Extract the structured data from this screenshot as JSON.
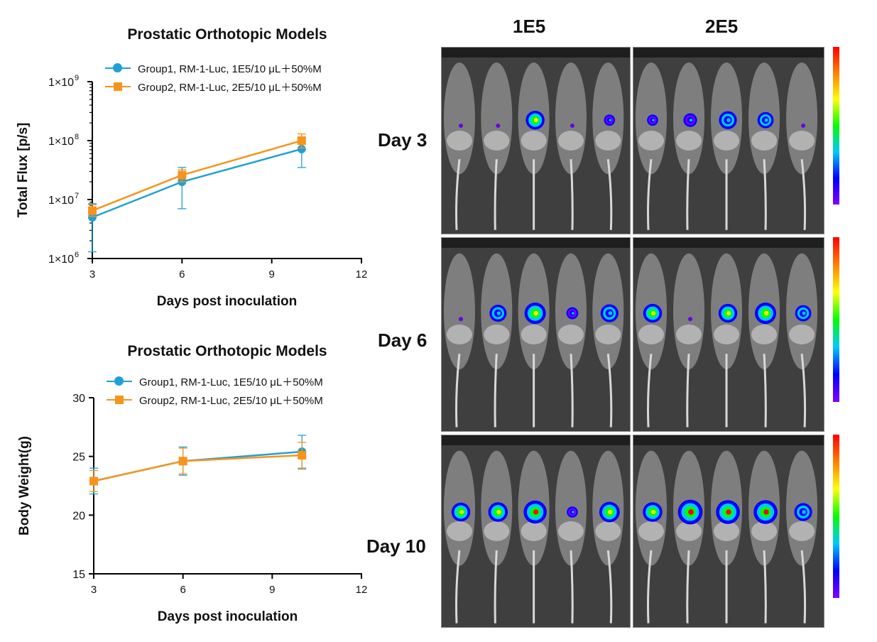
{
  "chart_data": [
    {
      "type": "line",
      "title": "Prostatic Orthotopic Models",
      "xlabel": "Days post inoculation",
      "ylabel": "Total Flux [p/s]",
      "yscale": "log",
      "xlim": [
        3,
        12
      ],
      "ylim": [
        1000000,
        1000000000
      ],
      "xticks": [
        "3",
        "6",
        "9",
        "12"
      ],
      "yticks": [
        {
          "base": "1×10",
          "exp": "6"
        },
        {
          "base": "1×10",
          "exp": "7"
        },
        {
          "base": "1×10",
          "exp": "8"
        },
        {
          "base": "1×10",
          "exp": "9"
        }
      ],
      "x": [
        3,
        6,
        10
      ],
      "series": [
        {
          "name": "Group1, RM-1-Luc, 1E5/10 μL＋50%M",
          "color": "#1fa0d8",
          "marker": "circle",
          "values": [
            5000000,
            20000000,
            72000000
          ],
          "err_low": [
            1300000,
            7000000,
            35000000
          ],
          "err_high": [
            8500000,
            35000000,
            110000000
          ]
        },
        {
          "name": "Group2, RM-1-Luc, 2E5/10 μL＋50%M",
          "color": "#f7941d",
          "marker": "square",
          "values": [
            6500000,
            26000000,
            100000000
          ],
          "err_low": [
            5200000,
            20000000,
            75000000
          ],
          "err_high": [
            8200000,
            32000000,
            130000000
          ]
        }
      ]
    },
    {
      "type": "line",
      "title": "Prostatic Orthotopic Models",
      "xlabel": "Days post inoculation",
      "ylabel": "Body Weight(g)",
      "yscale": "linear",
      "xlim": [
        3,
        12
      ],
      "ylim": [
        15,
        30
      ],
      "xticks": [
        "3",
        "6",
        "9",
        "12"
      ],
      "yticks": [
        "15",
        "20",
        "25",
        "30"
      ],
      "x": [
        3,
        6,
        10
      ],
      "series": [
        {
          "name": "Group1, RM-1-Luc, 1E5/10 μL＋50%M",
          "color": "#1fa0d8",
          "marker": "circle",
          "values": [
            22.9,
            24.6,
            25.4
          ],
          "err_low": [
            21.8,
            23.4,
            24.0
          ],
          "err_high": [
            24.0,
            25.8,
            26.8
          ]
        },
        {
          "name": "Group2, RM-1-Luc, 2E5/10 μL＋50%M",
          "color": "#f7941d",
          "marker": "square",
          "values": [
            22.9,
            24.6,
            25.1
          ],
          "err_low": [
            22.0,
            23.5,
            23.9
          ],
          "err_high": [
            23.8,
            25.7,
            26.2
          ]
        }
      ]
    }
  ],
  "imaging": {
    "columns": [
      "1E5",
      "2E5"
    ],
    "rows": [
      {
        "label": "Day 3",
        "spots": [
          [
            0,
            0.05
          ],
          [
            0,
            0.1
          ],
          [
            1,
            0.6
          ],
          [
            0,
            0.05
          ],
          [
            1,
            0.15
          ],
          [
            1,
            0.15
          ],
          [
            1,
            0.3
          ],
          [
            1,
            0.55
          ],
          [
            1,
            0.45
          ],
          [
            0,
            0.1
          ]
        ]
      },
      {
        "label": "Day 6",
        "spots": [
          [
            0,
            0.1
          ],
          [
            1,
            0.5
          ],
          [
            1,
            0.75
          ],
          [
            1,
            0.2
          ],
          [
            1,
            0.55
          ],
          [
            1,
            0.6
          ],
          [
            0,
            0.05
          ],
          [
            1,
            0.6
          ],
          [
            1,
            0.75
          ],
          [
            1,
            0.45
          ]
        ]
      },
      {
        "label": "Day 10",
        "spots": [
          [
            1,
            0.6
          ],
          [
            1,
            0.65
          ],
          [
            1,
            0.85
          ],
          [
            1,
            0.15
          ],
          [
            1,
            0.7
          ],
          [
            1,
            0.65
          ],
          [
            1,
            0.95
          ],
          [
            1,
            0.9
          ],
          [
            1,
            0.9
          ],
          [
            1,
            0.55
          ]
        ]
      }
    ],
    "colorbar": [
      "#ff0000",
      "#ff8000",
      "#ffff00",
      "#00ff00",
      "#00c8ff",
      "#0000ff",
      "#8000ff"
    ]
  }
}
